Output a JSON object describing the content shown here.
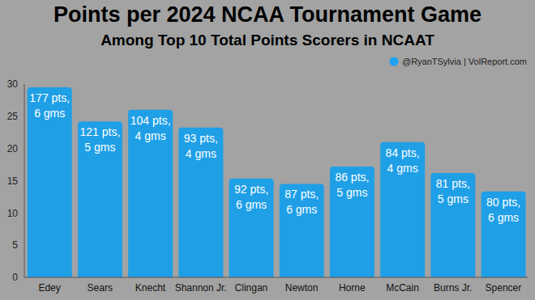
{
  "chart_data": {
    "type": "bar",
    "title": "Points per 2024 NCAA Tournament Game",
    "subtitle": "Among Top 10 Total Points Scorers in NCAAT",
    "source": "@RyanTSylvia | VolReport.com",
    "categories": [
      "Edey",
      "Sears",
      "Knecht",
      "Shannon Jr.",
      "Clingan",
      "Newton",
      "Horne",
      "McCain",
      "Burns Jr.",
      "Spencer"
    ],
    "values": [
      29.5,
      24.2,
      26,
      23.25,
      15.33,
      14.5,
      17.2,
      21,
      16.2,
      13.33
    ],
    "annotations": [
      [
        "177 pts,",
        "6 gms"
      ],
      [
        "121 pts,",
        "5 gms"
      ],
      [
        "104 pts,",
        "4 gms"
      ],
      [
        "93 pts,",
        "4 gms"
      ],
      [
        "92 pts,",
        "6 gms"
      ],
      [
        "87 pts,",
        "6 gms"
      ],
      [
        "86 pts,",
        "5 gms"
      ],
      [
        "84 pts,",
        "4 gms"
      ],
      [
        "81 pts,",
        "5 gms"
      ],
      [
        "80 pts,",
        "6 gms"
      ]
    ],
    "color": "#1f9fe6",
    "ylim": [
      0,
      30
    ],
    "yticks": [
      0,
      5,
      10,
      15,
      20,
      25,
      30
    ],
    "grid": false
  }
}
